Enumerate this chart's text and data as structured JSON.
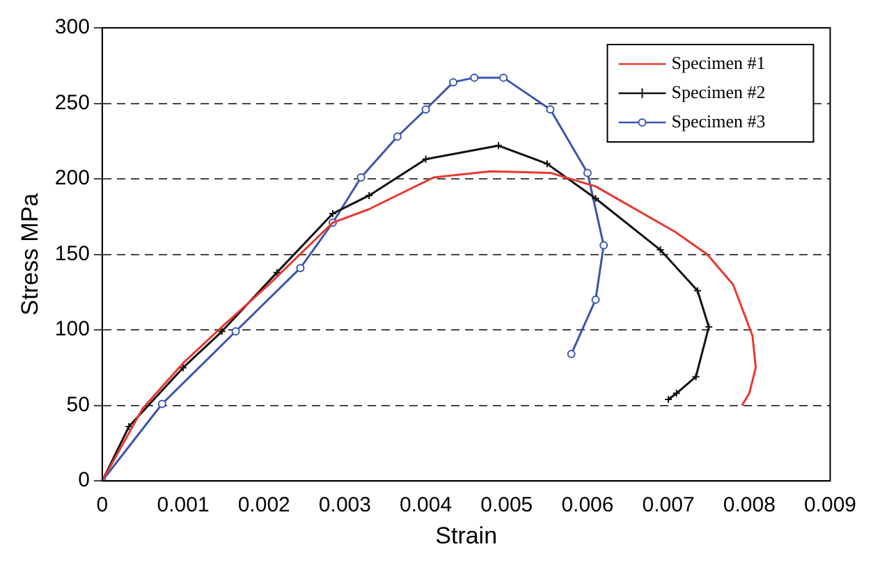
{
  "chart_data": {
    "type": "line",
    "xlabel": "Strain",
    "ylabel": "Stress MPa",
    "xlim": [
      0,
      0.009
    ],
    "xticks": [
      0,
      0.001,
      0.002,
      0.003,
      0.004,
      0.005,
      0.006,
      0.007,
      0.008,
      0.009
    ],
    "ylim": [
      0,
      300
    ],
    "yticks": [
      0,
      50,
      100,
      150,
      200,
      250,
      300
    ],
    "grid": "y",
    "legend": "top right",
    "series": [
      {
        "name": "Specimen #1",
        "color": "#e8382f",
        "marker": "none",
        "x": [
          0,
          0.0005,
          0.001,
          0.0015,
          0.00204,
          0.00285,
          0.0033,
          0.0041,
          0.0048,
          0.00554,
          0.0061,
          0.00708,
          0.00748,
          0.0078,
          0.00804,
          0.00808,
          0.008,
          0.00791
        ],
        "values": [
          0,
          48,
          78,
          103,
          129,
          171,
          180,
          201,
          205,
          204,
          195,
          165,
          150,
          130,
          96,
          75,
          58,
          50
        ]
      },
      {
        "name": "Specimen #2",
        "color": "#111111",
        "marker": "cross",
        "x": [
          0,
          0.00033,
          0.001,
          0.00148,
          0.00216,
          0.00285,
          0.0033,
          0.004,
          0.0049,
          0.0055,
          0.0061,
          0.0069,
          0.00736,
          0.0075,
          0.00734,
          0.0071,
          0.007
        ],
        "values": [
          0,
          36,
          75,
          99,
          138,
          177,
          189,
          213,
          222,
          210,
          187,
          153,
          126,
          102,
          69,
          58,
          54
        ]
      },
      {
        "name": "Specimen #3",
        "color": "#3a55b0",
        "marker": "circle",
        "x": [
          0,
          0.00074,
          0.00165,
          0.00245,
          0.00285,
          0.0032,
          0.00365,
          0.004,
          0.00434,
          0.0046,
          0.00496,
          0.00554,
          0.006,
          0.0062,
          0.0061,
          0.0058
        ],
        "values": [
          0,
          51,
          99,
          141,
          171,
          201,
          228,
          246,
          264,
          267,
          267,
          246,
          204,
          156,
          120,
          84
        ]
      }
    ]
  }
}
